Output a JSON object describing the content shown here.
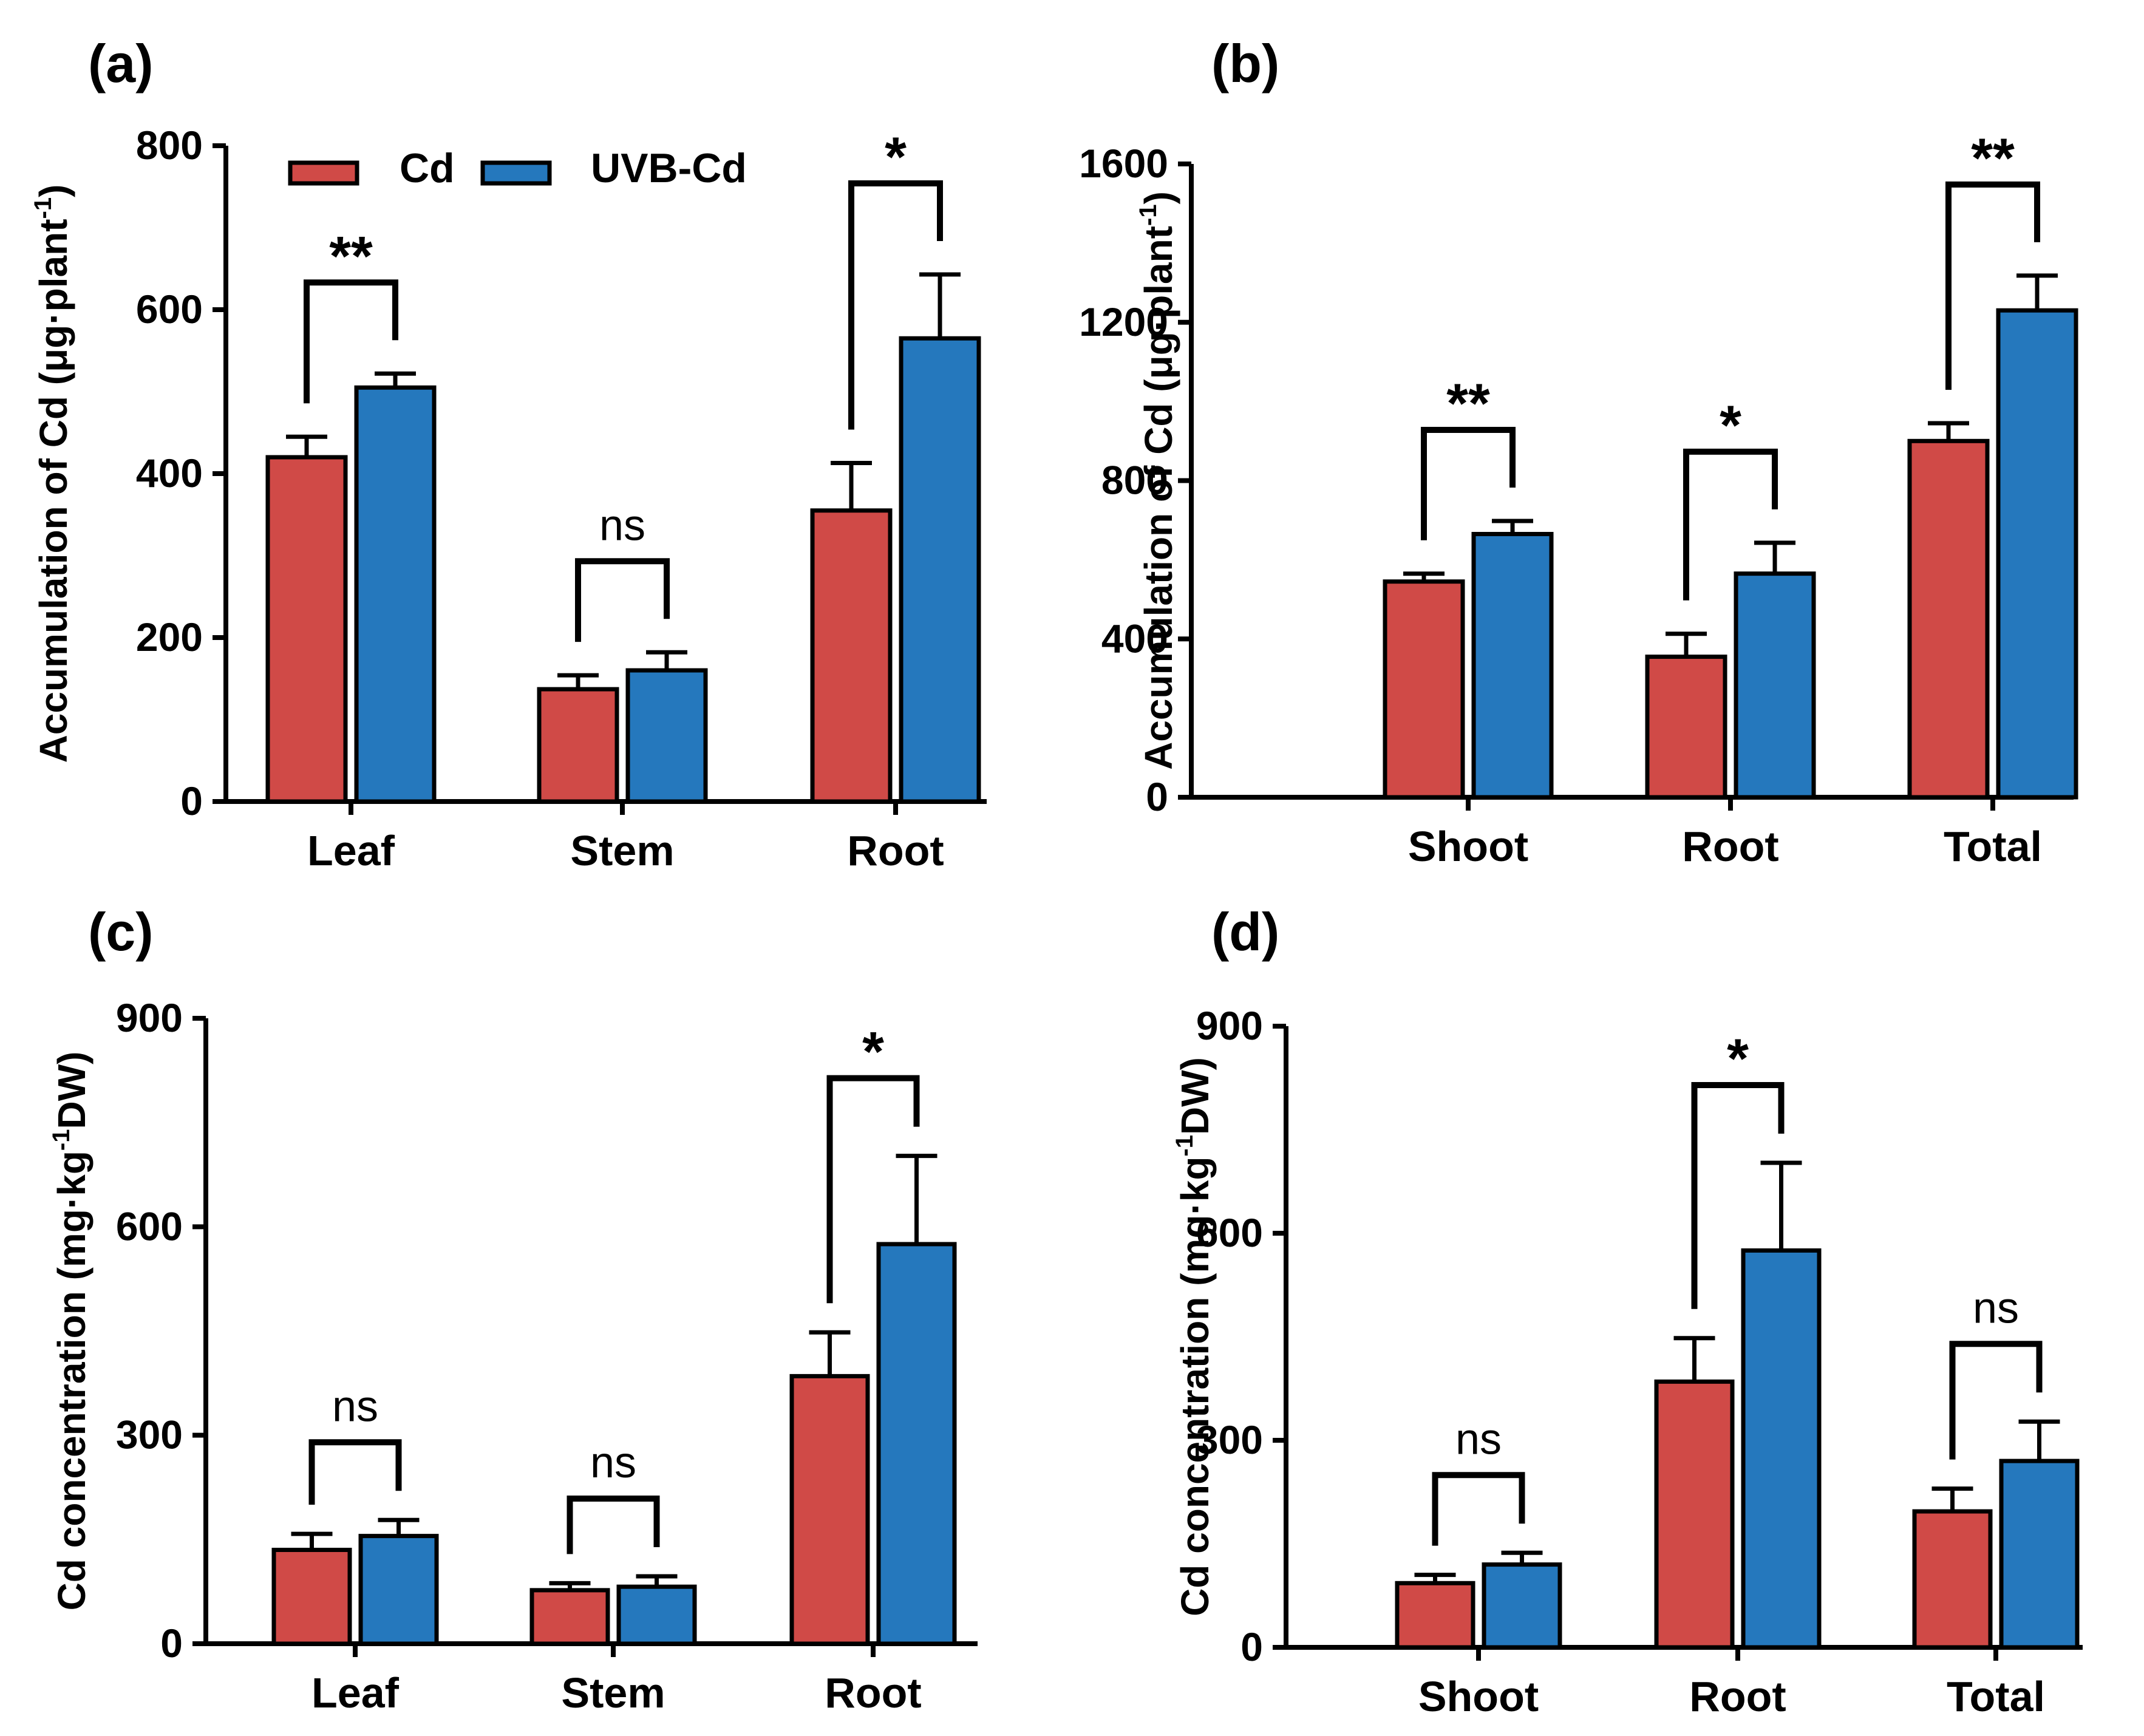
{
  "legend": {
    "items": [
      {
        "name": "Cd",
        "color": "#d04a47"
      },
      {
        "name": "UVB-Cd",
        "color": "#2578bd"
      }
    ],
    "placement": "top-left of panel (a)"
  },
  "chart_data": [
    {
      "panel": "(a)",
      "type": "bar",
      "categories": [
        "Leaf",
        "Stem",
        "Root"
      ],
      "series": [
        {
          "name": "Cd",
          "values": [
            420,
            137,
            355
          ],
          "errors": [
            25,
            17,
            58
          ]
        },
        {
          "name": "UVB-Cd",
          "values": [
            505,
            160,
            565
          ],
          "errors": [
            17,
            22,
            78
          ]
        }
      ],
      "ylabel": "Accumulation of Cd (μg·plant",
      "ylabel_sup": "-1",
      "ylabel_tail": ")",
      "ylim": [
        0,
        800
      ],
      "yticks": [
        "0",
        "200",
        "400",
        "600",
        "800"
      ],
      "ytick_values": [
        0,
        200,
        400,
        600,
        800
      ],
      "significance": [
        "**",
        "ns",
        "*"
      ]
    },
    {
      "panel": "(b)",
      "type": "bar",
      "categories": [
        "Shoot",
        "Root",
        "Total"
      ],
      "series": [
        {
          "name": "Cd",
          "values": [
            545,
            355,
            900
          ],
          "errors": [
            20,
            58,
            45
          ]
        },
        {
          "name": "UVB-Cd",
          "values": [
            665,
            565,
            1230
          ],
          "errors": [
            33,
            78,
            88
          ]
        }
      ],
      "ylabel": "Accumulation of Cd (μg·plant",
      "ylabel_sup": "-1",
      "ylabel_tail": ")",
      "ylim": [
        0,
        1600
      ],
      "yticks": [
        "0",
        "400",
        "800",
        "1200",
        "1600"
      ],
      "ytick_values": [
        0,
        400,
        800,
        1200,
        1600
      ],
      "significance": [
        "**",
        "*",
        "**"
      ]
    },
    {
      "panel": "(c)",
      "type": "bar",
      "categories": [
        "Leaf",
        "Stem",
        "Root"
      ],
      "series": [
        {
          "name": "Cd",
          "values": [
            135,
            77,
            385
          ],
          "errors": [
            23,
            10,
            63
          ]
        },
        {
          "name": "UVB-Cd",
          "values": [
            155,
            82,
            575
          ],
          "errors": [
            23,
            15,
            127
          ]
        }
      ],
      "ylabel": "Cd concentration (mg·kg",
      "ylabel_sup": "-1",
      "ylabel_tail": "DW)",
      "ylim": [
        0,
        900
      ],
      "yticks": [
        "0",
        "300",
        "600",
        "900"
      ],
      "ytick_values": [
        0,
        300,
        600,
        900
      ],
      "significance": [
        "ns",
        "ns",
        "*"
      ]
    },
    {
      "panel": "(d)",
      "type": "bar",
      "categories": [
        "Shoot",
        "Root",
        "Total"
      ],
      "series": [
        {
          "name": "Cd",
          "values": [
            93,
            385,
            197
          ],
          "errors": [
            12,
            63,
            33
          ]
        },
        {
          "name": "UVB-Cd",
          "values": [
            120,
            575,
            270
          ],
          "errors": [
            17,
            127,
            57
          ]
        }
      ],
      "ylabel": "Cd concentration (mg·kg",
      "ylabel_sup": "-1",
      "ylabel_tail": "DW)",
      "ylim": [
        0,
        900
      ],
      "yticks": [
        "0",
        "300",
        "600",
        "900"
      ],
      "ytick_values": [
        0,
        300,
        600,
        900
      ],
      "significance": [
        "ns",
        "*",
        "ns"
      ]
    }
  ]
}
